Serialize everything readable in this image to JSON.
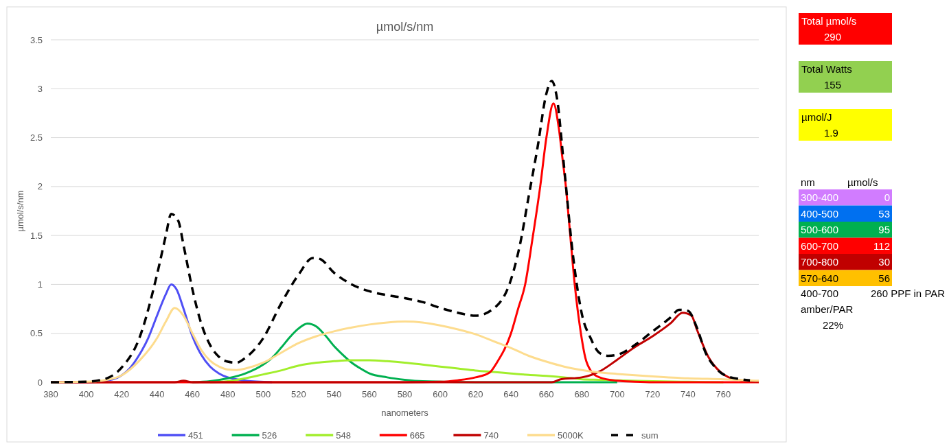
{
  "chart_data": [
    {
      "type": "line",
      "title": "µmol/s/nm",
      "xlabel": "nanometers",
      "ylabel": "µmol/s/nm",
      "xlim": [
        380,
        780
      ],
      "xticks": [
        380,
        400,
        420,
        440,
        460,
        480,
        500,
        520,
        540,
        560,
        580,
        600,
        620,
        640,
        660,
        680,
        700,
        720,
        740,
        760
      ],
      "ylim": [
        0,
        3.5
      ],
      "yticks": [
        0,
        0.5,
        1,
        1.5,
        2,
        2.5,
        3,
        3.5
      ],
      "grid": "y",
      "legend": "bottom",
      "line_style": "solid",
      "series": [
        {
          "name": "451",
          "color": "#4f4ff5",
          "x": [
            380,
            400,
            410,
            415,
            420,
            425,
            430,
            435,
            440,
            445,
            448,
            451,
            455,
            460,
            465,
            470,
            475,
            480,
            485,
            490,
            500,
            505
          ],
          "values": [
            0,
            0,
            null,
            0.03,
            0.07,
            0.15,
            0.28,
            0.45,
            0.68,
            0.9,
            1.0,
            0.95,
            0.75,
            0.47,
            0.28,
            0.16,
            0.09,
            0.05,
            0.03,
            0.015,
            null,
            0
          ]
        },
        {
          "name": "526",
          "color": "#00b050",
          "x": [
            460,
            470,
            480,
            490,
            500,
            505,
            510,
            515,
            520,
            525,
            530,
            535,
            540,
            545,
            550,
            555,
            560,
            570,
            580,
            590,
            600,
            620,
            700
          ],
          "values": [
            0,
            0.01,
            0.04,
            0.09,
            0.18,
            0.25,
            0.35,
            0.46,
            0.55,
            0.6,
            0.57,
            0.48,
            0.37,
            0.28,
            0.2,
            0.14,
            0.09,
            0.05,
            0.025,
            0.01,
            null,
            0,
            0
          ]
        },
        {
          "name": "548",
          "color": "#a2ee2c",
          "x": [
            470,
            480,
            490,
            500,
            510,
            520,
            530,
            540,
            550,
            560,
            570,
            580,
            590,
            600,
            610,
            620,
            630,
            640,
            650,
            660,
            670,
            680,
            690,
            700,
            720,
            740,
            760
          ],
          "values": [
            0,
            0.01,
            0.04,
            0.08,
            0.12,
            0.17,
            0.2,
            0.215,
            0.225,
            0.225,
            0.215,
            0.2,
            0.18,
            0.16,
            0.14,
            0.12,
            0.105,
            0.09,
            0.075,
            0.065,
            0.05,
            0.03,
            0.025,
            0.02,
            0.01,
            0.005,
            0
          ]
        },
        {
          "name": "665",
          "color": "#ff0000",
          "x": [
            380,
            580,
            600,
            610,
            620,
            628,
            632,
            640,
            644,
            648,
            652,
            656.5,
            660,
            664,
            667,
            669,
            671,
            673,
            676,
            679.5,
            682,
            685,
            690,
            700,
            710,
            720,
            780
          ],
          "values": [
            0,
            0,
            0.005,
            0.02,
            0.05,
            0.1,
            0.2,
            0.5,
            0.75,
            1.0,
            1.45,
            2.0,
            2.5,
            2.85,
            2.6,
            2.3,
            2.0,
            1.6,
            1.0,
            0.5,
            0.25,
            0.12,
            0.05,
            0.015,
            0.005,
            0,
            0
          ]
        },
        {
          "name": "740",
          "color": "#c00000",
          "x": [
            380,
            450,
            455,
            460,
            663,
            668,
            680,
            690,
            700,
            710,
            720,
            730,
            737,
            742,
            745,
            751.5,
            758,
            763,
            770,
            780
          ],
          "values": [
            0,
            0,
            0.015,
            0,
            0,
            0.03,
            0.05,
            0.11,
            0.23,
            0.36,
            0.47,
            0.6,
            0.71,
            0.68,
            0.54,
            0.26,
            0.11,
            0.05,
            0.02,
            0.005
          ]
        },
        {
          "name": "5000K",
          "color": "#fddc8e",
          "x": [
            380,
            400,
            410,
            420,
            430,
            440,
            445,
            450,
            455,
            460,
            465,
            470,
            475,
            480,
            485,
            490,
            500,
            510,
            520,
            530,
            540,
            550,
            560,
            570,
            580,
            590,
            600,
            610,
            620,
            630,
            640,
            650,
            660,
            670,
            680,
            690,
            700,
            720,
            740,
            760,
            780
          ],
          "values": [
            0,
            0.005,
            0.02,
            0.07,
            0.22,
            0.45,
            0.62,
            0.76,
            0.68,
            0.5,
            0.33,
            0.22,
            0.16,
            0.13,
            0.125,
            0.14,
            0.2,
            0.3,
            0.4,
            0.47,
            0.52,
            0.56,
            0.59,
            0.61,
            0.62,
            0.61,
            0.58,
            0.54,
            0.49,
            0.42,
            0.35,
            0.27,
            0.21,
            0.16,
            0.125,
            0.1,
            0.085,
            0.06,
            0.04,
            0.03,
            0.015
          ]
        },
        {
          "name": "sum",
          "color": "#000000",
          "line_style": "dashed",
          "x": [
            380,
            400,
            410,
            420,
            430,
            440,
            445,
            448,
            452,
            455,
            460,
            465,
            470,
            475,
            480,
            485,
            490,
            500,
            510,
            520,
            528,
            532,
            540,
            550,
            560,
            570,
            580,
            590,
            600,
            610,
            620,
            630,
            640,
            645,
            650,
            655,
            660,
            663,
            666,
            670,
            675,
            680,
            685,
            690,
            695,
            700,
            710,
            720,
            730,
            735,
            740,
            745,
            750,
            755,
            760,
            770,
            775
          ],
          "values": [
            0,
            0.005,
            0.03,
            0.15,
            0.45,
            1.1,
            1.5,
            1.72,
            1.65,
            1.4,
            0.95,
            0.6,
            0.38,
            0.26,
            0.21,
            0.2,
            0.25,
            0.45,
            0.8,
            1.1,
            1.27,
            1.26,
            1.12,
            1.0,
            0.93,
            0.89,
            0.86,
            0.82,
            0.76,
            0.71,
            0.68,
            0.75,
            1.05,
            1.4,
            1.9,
            2.4,
            2.95,
            3.08,
            2.9,
            2.2,
            1.3,
            0.7,
            0.45,
            0.3,
            0.27,
            0.28,
            0.38,
            0.52,
            0.66,
            0.74,
            0.73,
            0.56,
            0.3,
            0.16,
            0.08,
            0.03,
            0.02
          ]
        }
      ]
    },
    {
      "type": "other",
      "annotations": [
        "Total µmol/s",
        "290",
        "Total Watts",
        "155",
        "µmol/J",
        "1.9",
        "nm",
        "µmol/s",
        "300-400",
        "0",
        "400-500",
        "53",
        "500-600",
        "95",
        "600-700",
        "112",
        "700-800",
        "30",
        "570-640",
        "56",
        "400-700",
        "260 PPF in PAR",
        "amber/PAR",
        "22%"
      ]
    }
  ]
}
